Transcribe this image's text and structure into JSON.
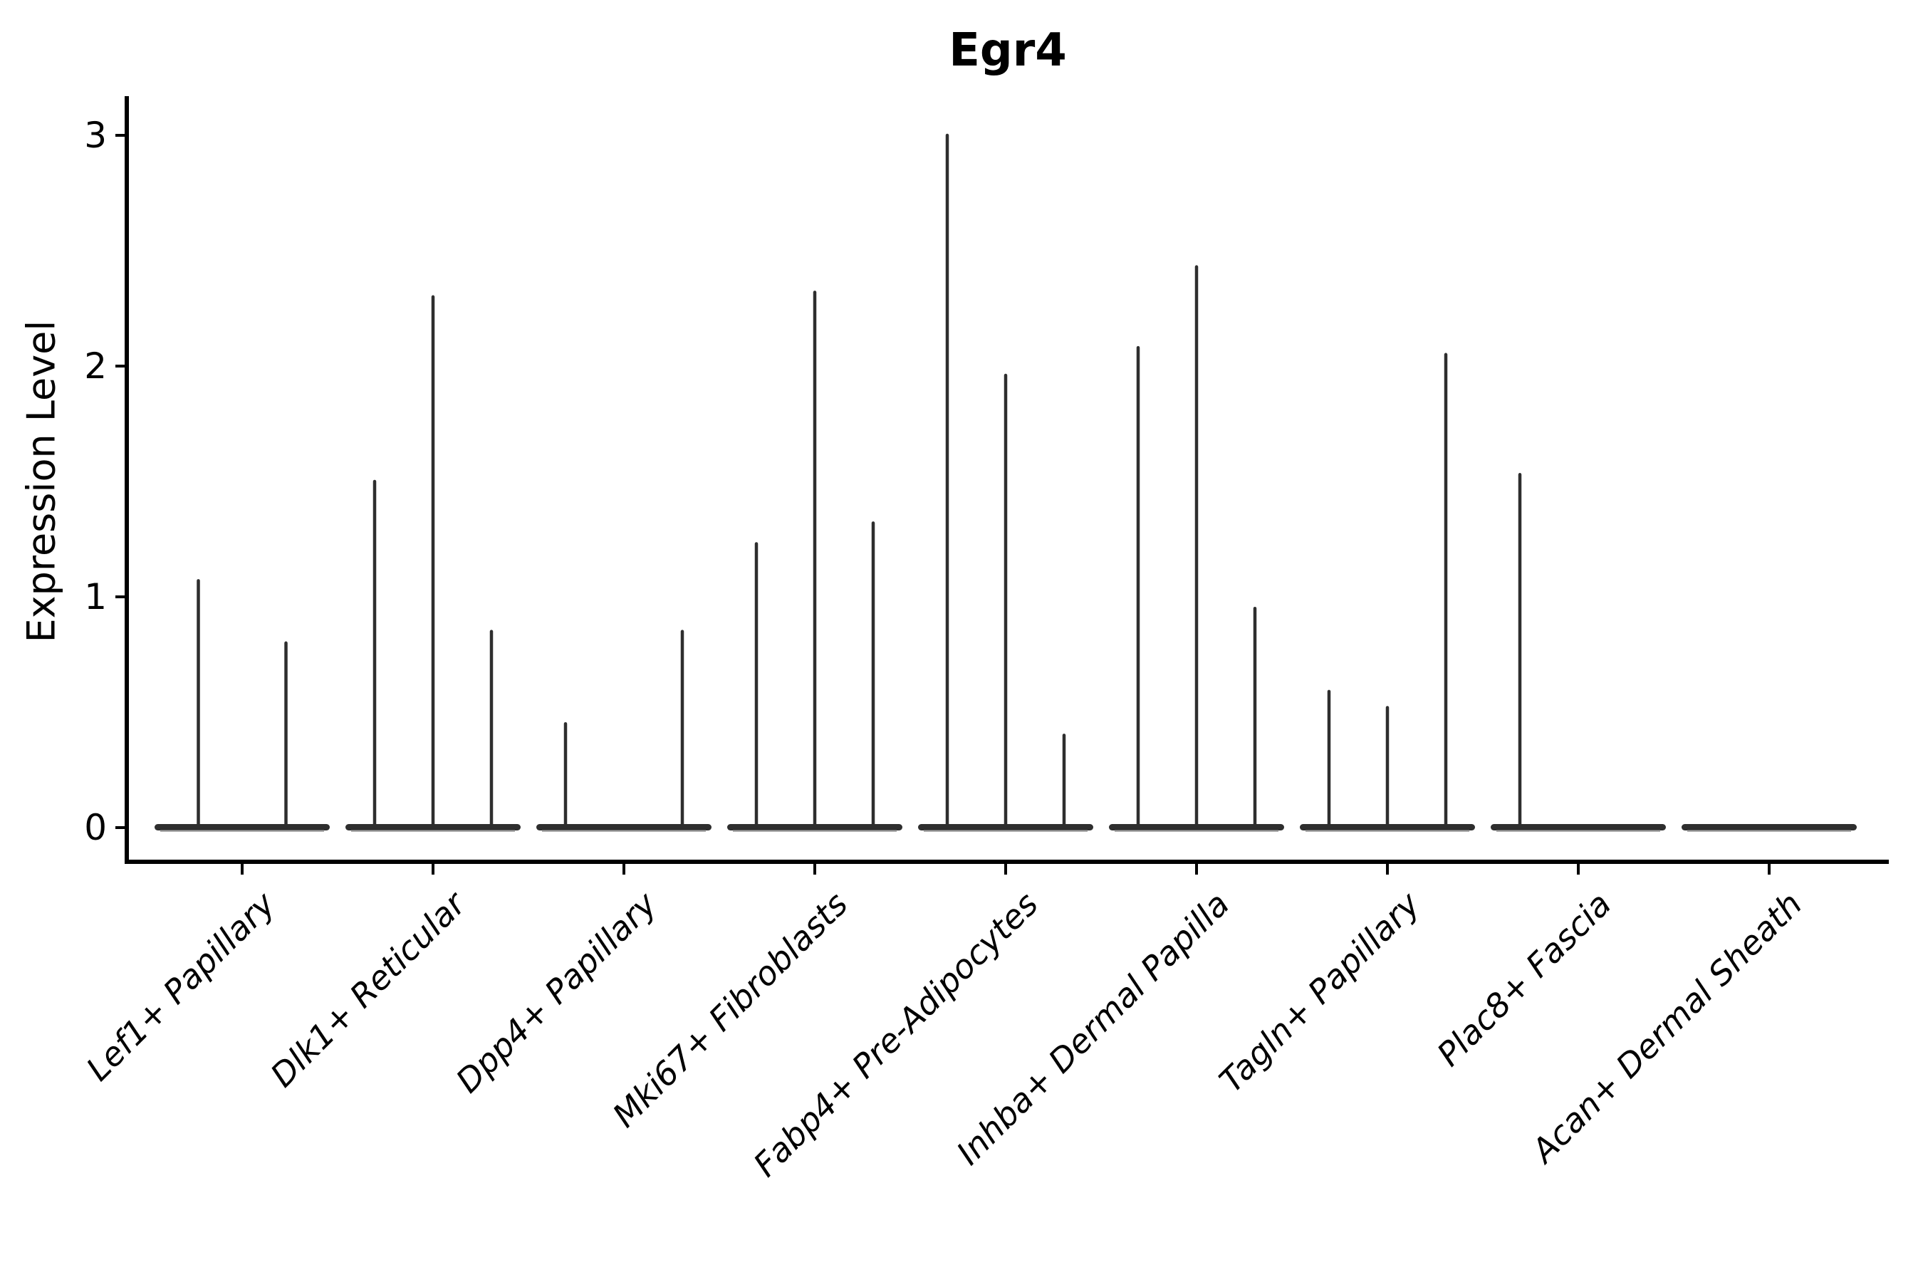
{
  "figure": {
    "title": "Egr4"
  },
  "chart_data": {
    "type": "violin",
    "title": "Egr4",
    "ylabel": "Expression Level",
    "ylim": [
      0,
      3.05
    ],
    "yticks": [
      0,
      1,
      2,
      3
    ],
    "grid": false,
    "legend_position": "none",
    "categories": [
      "Lef1+ Papillary",
      "Dlk1+ Reticular",
      "Dpp4+ Papillary",
      "Mki67+ Fibroblasts",
      "Fabp4+ Pre-Adipocytes",
      "Inhba+ Dermal Papilla",
      "Tagln+ Papillary",
      "Plac8+ Fascia",
      "Acan+ Dermal Sheath"
    ],
    "series": [
      {
        "category": "Lef1+ Papillary",
        "violin_max_expression": [
          1.07,
          0.8
        ]
      },
      {
        "category": "Dlk1+ Reticular",
        "violin_max_expression": [
          1.5,
          2.3,
          0.85
        ]
      },
      {
        "category": "Dpp4+ Papillary",
        "violin_max_expression": [
          0.45,
          0.0,
          0.85
        ]
      },
      {
        "category": "Mki67+ Fibroblasts",
        "violin_max_expression": [
          1.23,
          2.32,
          1.32
        ]
      },
      {
        "category": "Fabp4+ Pre-Adipocytes",
        "violin_max_expression": [
          3.0,
          1.96,
          0.4
        ]
      },
      {
        "category": "Inhba+ Dermal Papilla",
        "violin_max_expression": [
          2.08,
          2.43,
          0.95
        ]
      },
      {
        "category": "Tagln+ Papillary",
        "violin_max_expression": [
          0.59,
          0.52,
          2.05
        ]
      },
      {
        "category": "Plac8+ Fascia",
        "violin_max_expression": [
          1.53,
          0.0,
          0.0
        ]
      },
      {
        "category": "Acan+ Dermal Sheath",
        "violin_max_expression": [
          0.0,
          0.0,
          0.0
        ]
      }
    ],
    "style": {
      "violin_color": "#2e2e2e",
      "violin_shadow_color": "#9a9a9a",
      "axis_color": "#000000",
      "background": "#ffffff"
    }
  }
}
